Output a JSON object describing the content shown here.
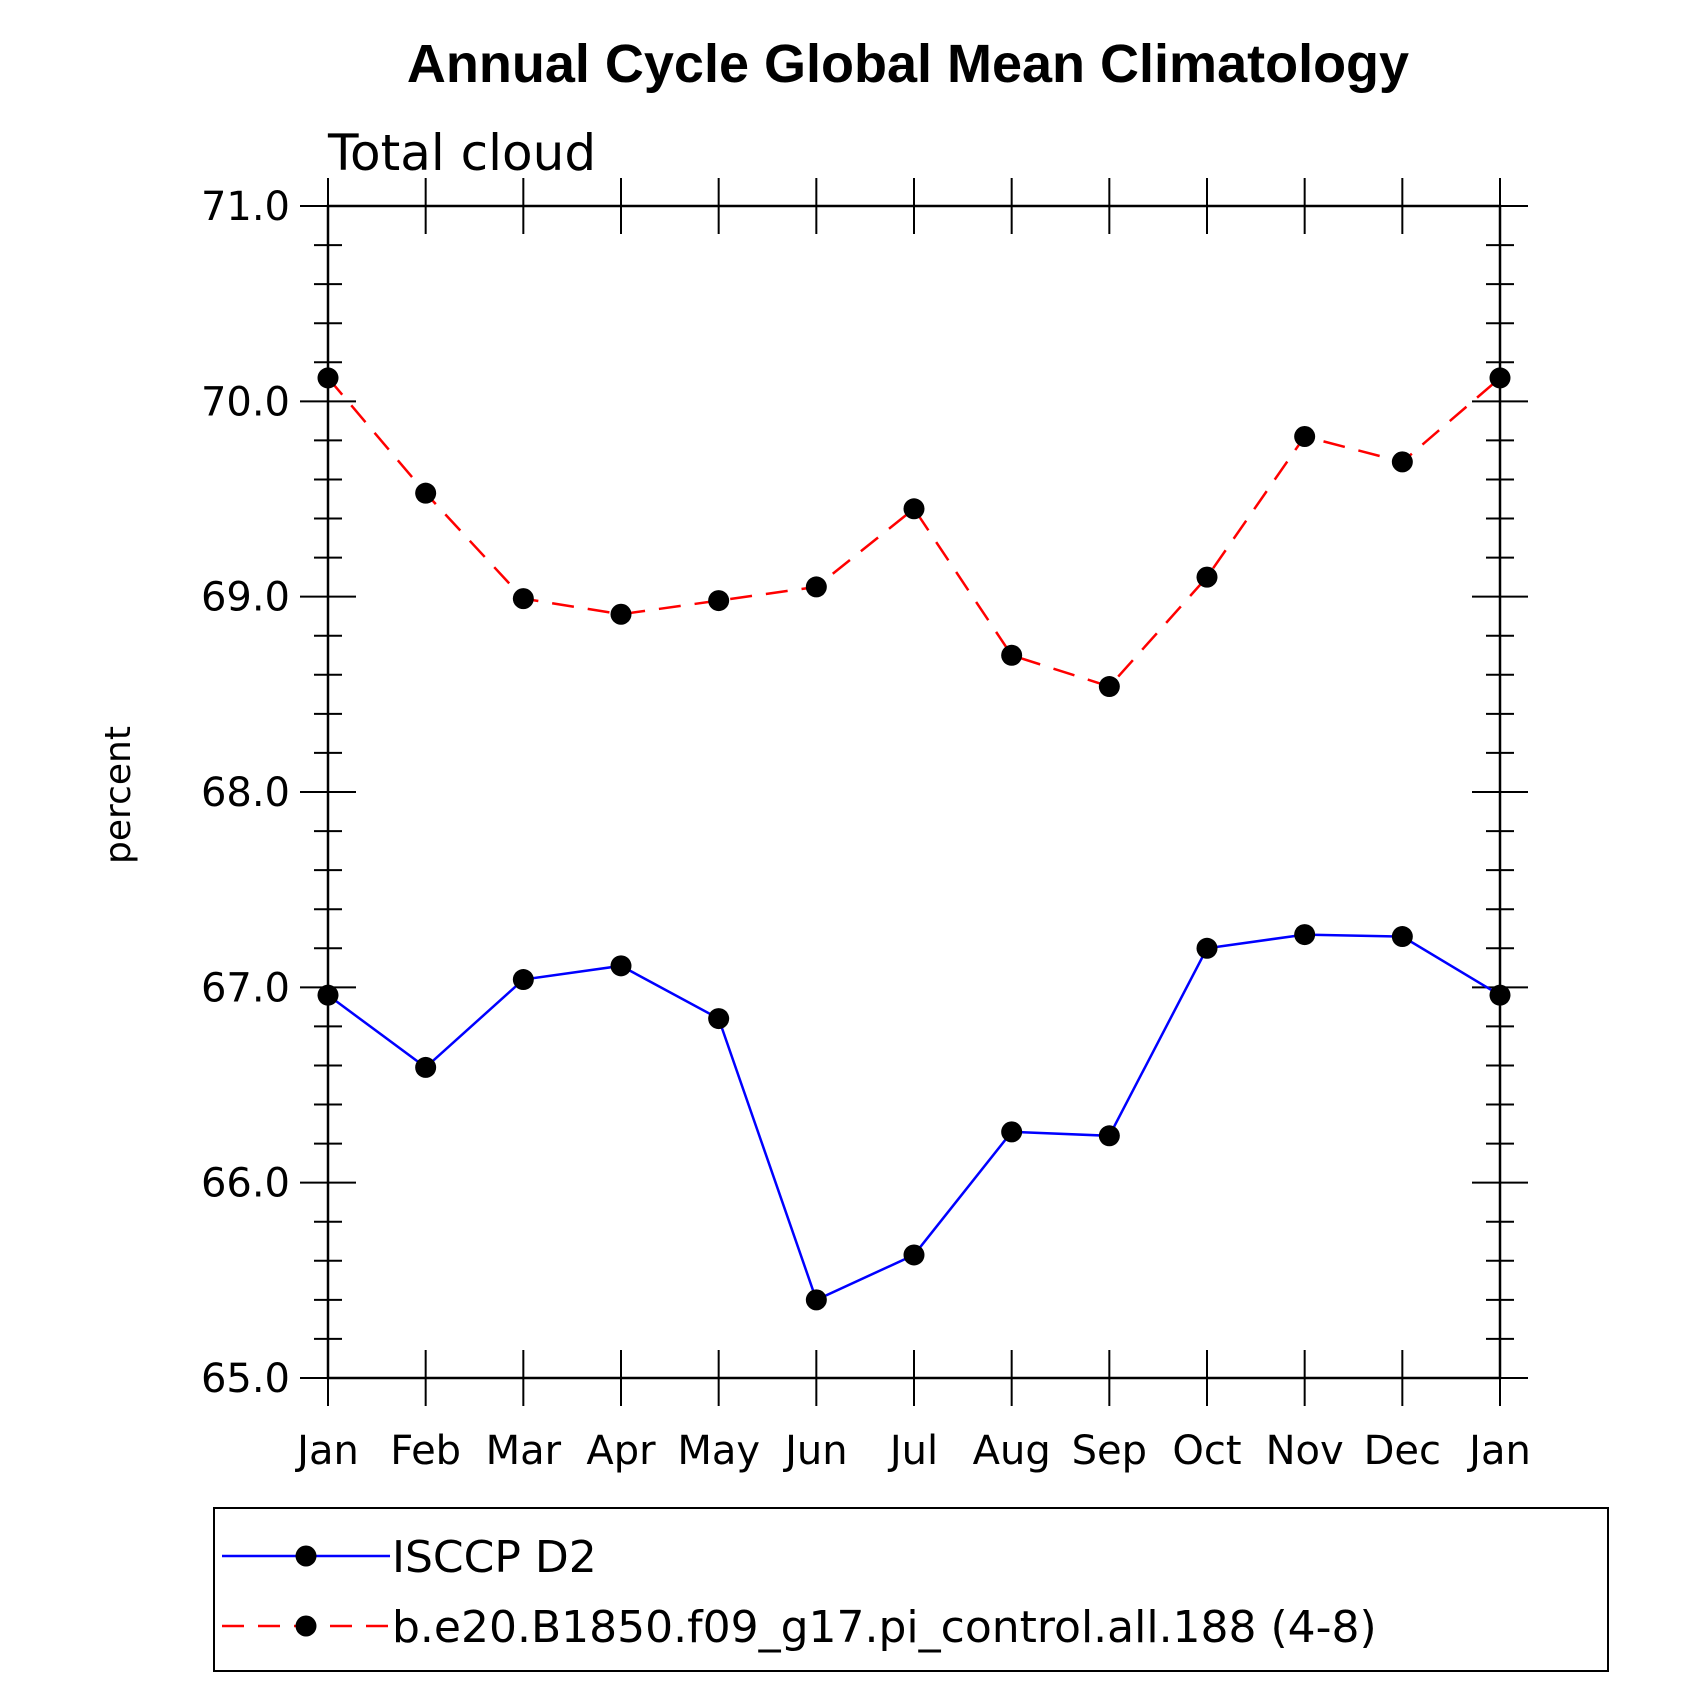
{
  "chart_data": {
    "type": "line",
    "title": "Annual Cycle Global Mean Climatology",
    "subtitle": "Total cloud",
    "xlabel": "",
    "ylabel": "percent",
    "categories": [
      "Jan",
      "Feb",
      "Mar",
      "Apr",
      "May",
      "Jun",
      "Jul",
      "Aug",
      "Sep",
      "Oct",
      "Nov",
      "Dec",
      "Jan"
    ],
    "ylim": [
      65.0,
      71.0
    ],
    "yticks": [
      "65.0",
      "66.0",
      "67.0",
      "68.0",
      "69.0",
      "70.0",
      "71.0"
    ],
    "grid": false,
    "legend": "bottom",
    "series": [
      {
        "name": "ISCCP D2",
        "color": "#0000ff",
        "dash": "solid",
        "values": [
          66.96,
          66.59,
          67.04,
          67.11,
          66.84,
          65.4,
          65.63,
          66.26,
          66.24,
          67.2,
          67.27,
          67.26,
          66.96
        ]
      },
      {
        "name": "b.e20.B1850.f09_g17.pi_control.all.188 (4-8)",
        "color": "#ff0000",
        "dash": "dashed",
        "values": [
          70.12,
          69.53,
          68.99,
          68.91,
          68.98,
          69.05,
          69.45,
          68.7,
          68.54,
          69.1,
          69.82,
          69.69,
          70.12
        ]
      }
    ]
  }
}
